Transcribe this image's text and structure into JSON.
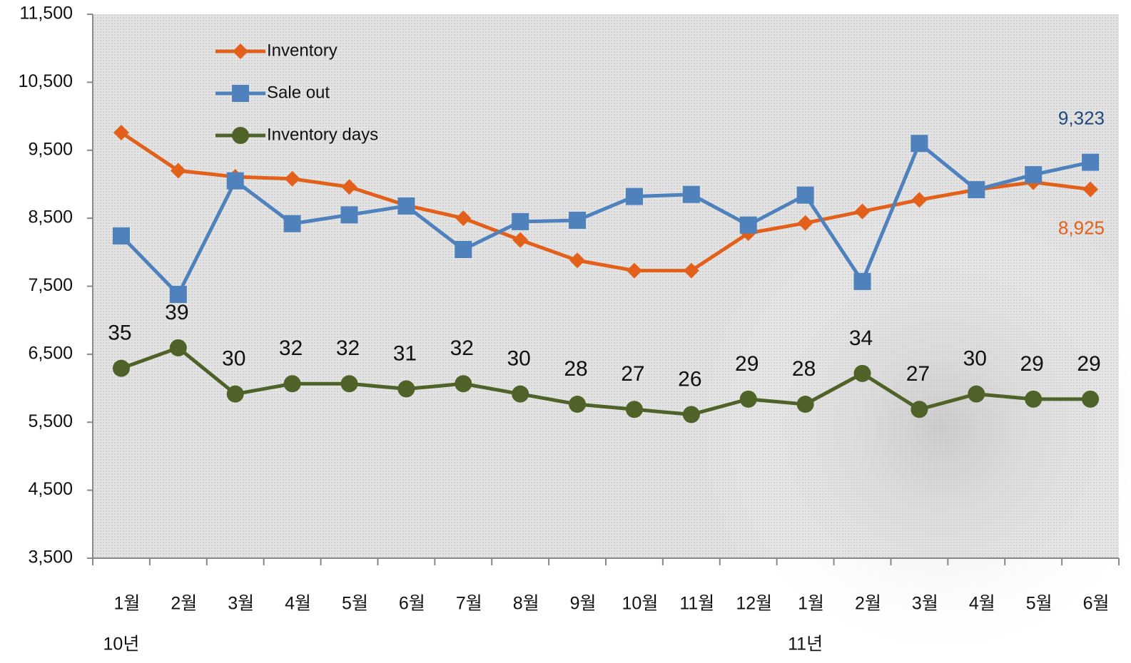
{
  "chart_data": {
    "type": "line",
    "categories": [
      "1월",
      "2월",
      "3월",
      "4월",
      "5월",
      "6월",
      "7월",
      "8월",
      "9월",
      "10월",
      "11월",
      "12월",
      "1월",
      "2월",
      "3월",
      "4월",
      "5월",
      "6월"
    ],
    "year_labels": [
      "10년",
      null,
      null,
      null,
      null,
      null,
      null,
      null,
      null,
      null,
      null,
      null,
      "11년",
      null,
      null,
      null,
      null,
      null
    ],
    "ylim": [
      3500,
      11500
    ],
    "yticks": [
      {
        "value": 3500,
        "label": "3,500"
      },
      {
        "value": 4500,
        "label": "4,500"
      },
      {
        "value": 5500,
        "label": "5,500"
      },
      {
        "value": 6500,
        "label": "6,500"
      },
      {
        "value": 7500,
        "label": "7,500"
      },
      {
        "value": 8500,
        "label": "8,500"
      },
      {
        "value": 9500,
        "label": "9,500"
      },
      {
        "value": 10500,
        "label": "10,500"
      },
      {
        "value": 11500,
        "label": "11,500"
      }
    ],
    "y2lim": [
      -2,
      104
    ],
    "legend": "upper left",
    "series": [
      {
        "name": "Inventory",
        "color": "#e2601a",
        "marker": "diamond",
        "values": [
          9760,
          9200,
          9110,
          9080,
          8960,
          8690,
          8500,
          8180,
          7880,
          7730,
          7730,
          8280,
          8430,
          8600,
          8770,
          8920,
          9030,
          8925
        ],
        "value_labels": [
          null,
          null,
          null,
          null,
          null,
          null,
          null,
          null,
          null,
          null,
          null,
          null,
          null,
          null,
          null,
          null,
          null,
          "8,925"
        ]
      },
      {
        "name": "Sale out",
        "color": "#4f81bd",
        "marker": "square",
        "values": [
          8240,
          7380,
          9050,
          8420,
          8550,
          8680,
          8040,
          8450,
          8470,
          8820,
          8850,
          8400,
          8840,
          7570,
          9600,
          8920,
          9140,
          9323
        ],
        "value_labels": [
          null,
          null,
          null,
          null,
          null,
          null,
          null,
          null,
          null,
          null,
          null,
          null,
          null,
          null,
          null,
          null,
          null,
          "9,323"
        ]
      },
      {
        "name": "Inventory days",
        "color": "#4f6228",
        "marker": "circle",
        "axis": "y2",
        "show_values": true,
        "values": [
          35,
          39,
          30,
          32,
          32,
          31,
          32,
          30,
          28,
          27,
          26,
          29,
          28,
          34,
          27,
          30,
          29,
          29
        ]
      }
    ]
  }
}
